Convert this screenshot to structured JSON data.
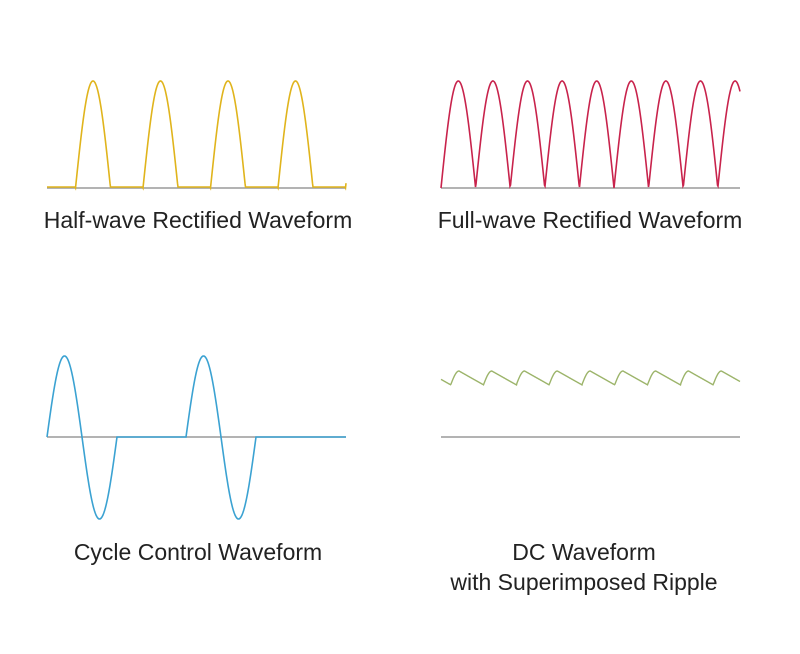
{
  "panels": [
    {
      "title": "Half-wave Rectified Waveform",
      "subtitle": "",
      "color": "#e0b41c",
      "kind": "half-wave"
    },
    {
      "title": "Full-wave Rectified Waveform",
      "subtitle": "",
      "color": "#c8234c",
      "kind": "full-wave"
    },
    {
      "title": "Cycle Control Waveform",
      "subtitle": "",
      "color": "#3ba2d2",
      "kind": "cycle-control"
    },
    {
      "title": "DC Waveform",
      "subtitle": "with Superimposed Ripple",
      "color": "#9cb46a",
      "kind": "dc-ripple"
    }
  ],
  "baseline_color": "#9a9a9a"
}
